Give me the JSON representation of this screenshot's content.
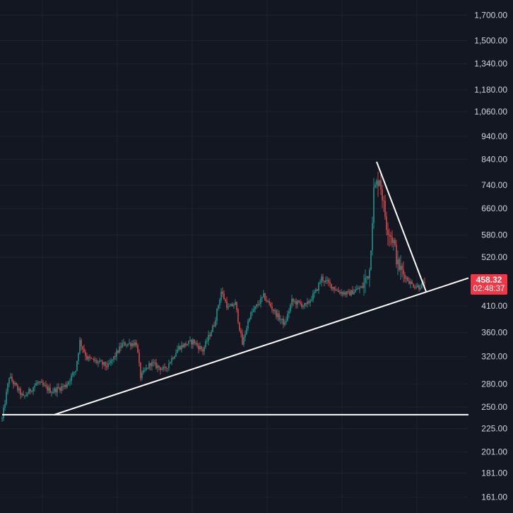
{
  "colors": {
    "background": "#131722",
    "grid": "#1e222d",
    "up": "#26a69a",
    "down": "#ef5350",
    "trendline": "#ffffff",
    "axis_text": "#d1d4dc",
    "price_badge": "#f23645"
  },
  "last_price": {
    "price": "458.32",
    "countdown": "02:48:37"
  },
  "chart_data": {
    "type": "candlestick",
    "title": "",
    "xlabel": "",
    "ylabel": "",
    "y_scale": "log",
    "ylim": [
      149,
      1830
    ],
    "grid": true,
    "y_ticks": [
      161,
      181,
      201,
      225,
      250,
      280,
      320,
      360,
      410,
      520,
      580,
      660,
      740,
      840,
      940,
      1060,
      1180,
      1340,
      1500,
      1700
    ],
    "y_tick_labels": [
      "161.00",
      "181.00",
      "201.00",
      "225.00",
      "250.00",
      "280.00",
      "320.00",
      "360.00",
      "410.00",
      "520.00",
      "580.00",
      "660.00",
      "740.00",
      "840.00",
      "940.00",
      "1,060.00",
      "1,180.00",
      "1,340.00",
      "1,500.00",
      "1,700.00"
    ],
    "last_value": 458.32,
    "anchors": [
      {
        "i": 0,
        "v": 236
      },
      {
        "i": 5,
        "v": 290
      },
      {
        "i": 15,
        "v": 262
      },
      {
        "i": 25,
        "v": 282
      },
      {
        "i": 35,
        "v": 270
      },
      {
        "i": 45,
        "v": 278
      },
      {
        "i": 52,
        "v": 300
      },
      {
        "i": 55,
        "v": 345
      },
      {
        "i": 60,
        "v": 318
      },
      {
        "i": 75,
        "v": 305
      },
      {
        "i": 85,
        "v": 340
      },
      {
        "i": 95,
        "v": 342
      },
      {
        "i": 98,
        "v": 290
      },
      {
        "i": 105,
        "v": 310
      },
      {
        "i": 115,
        "v": 300
      },
      {
        "i": 125,
        "v": 335
      },
      {
        "i": 135,
        "v": 345
      },
      {
        "i": 142,
        "v": 330
      },
      {
        "i": 150,
        "v": 375
      },
      {
        "i": 155,
        "v": 440
      },
      {
        "i": 160,
        "v": 405
      },
      {
        "i": 165,
        "v": 415
      },
      {
        "i": 170,
        "v": 340
      },
      {
        "i": 175,
        "v": 390
      },
      {
        "i": 185,
        "v": 430
      },
      {
        "i": 195,
        "v": 390
      },
      {
        "i": 200,
        "v": 375
      },
      {
        "i": 205,
        "v": 420
      },
      {
        "i": 215,
        "v": 410
      },
      {
        "i": 222,
        "v": 440
      },
      {
        "i": 226,
        "v": 470
      },
      {
        "i": 232,
        "v": 455
      },
      {
        "i": 238,
        "v": 440
      },
      {
        "i": 245,
        "v": 435
      },
      {
        "i": 255,
        "v": 450
      },
      {
        "i": 260,
        "v": 490
      },
      {
        "i": 263,
        "v": 720
      },
      {
        "i": 267,
        "v": 770
      },
      {
        "i": 272,
        "v": 610
      },
      {
        "i": 277,
        "v": 560
      },
      {
        "i": 280,
        "v": 500
      },
      {
        "i": 286,
        "v": 470
      },
      {
        "i": 290,
        "v": 455
      },
      {
        "i": 295,
        "v": 450
      },
      {
        "i": 299,
        "v": 458
      }
    ],
    "trendlines": [
      {
        "name": "support-horizontal",
        "from": {
          "i": 0,
          "v": 241
        },
        "to": {
          "i": 330,
          "v": 241
        }
      },
      {
        "name": "rising-trendline",
        "from": {
          "i": 37,
          "v": 241
        },
        "to": {
          "i": 330,
          "v": 470
        }
      },
      {
        "name": "falling-trendline",
        "from": {
          "i": 265,
          "v": 830
        },
        "to": {
          "i": 300,
          "v": 440
        }
      }
    ]
  }
}
